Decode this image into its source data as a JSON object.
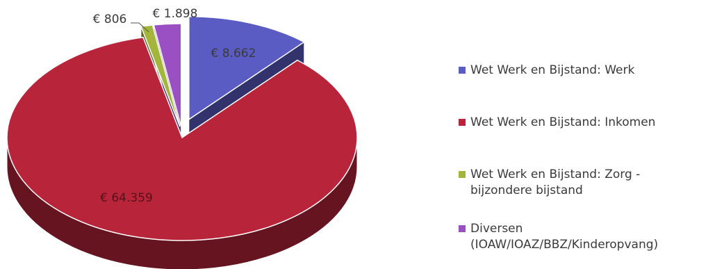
{
  "chart_data": {
    "type": "pie",
    "style": "3d-exploded",
    "title": "",
    "categories": [
      "Wet Werk en Bijstand: Werk",
      "Wet Werk en Bijstand: Inkomen",
      "Wet Werk en Bijstand: Zorg -\nbijzondere bijstand",
      "Diversen\n(IOAW/IOAZ/BBZ/Kinderopvang)"
    ],
    "values": [
      8662,
      64359,
      806,
      1898
    ],
    "data_labels": [
      "€ 8.662",
      "€ 64.359",
      "€ 806",
      "€ 1.898"
    ],
    "colors": [
      "#5a5cc4",
      "#b8253a",
      "#a3b53a",
      "#9a4fc2"
    ],
    "legend_position": "right"
  }
}
